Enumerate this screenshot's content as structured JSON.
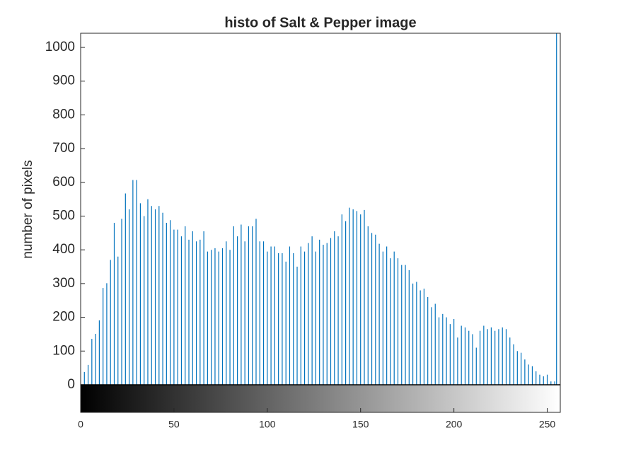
{
  "chart_data": {
    "type": "stem",
    "title": "histo of Salt & Pepper  image",
    "ylabel": "number of pixels",
    "color": "#0072bd",
    "x": [
      2,
      4,
      6,
      8,
      10,
      12,
      14,
      16,
      18,
      20,
      22,
      24,
      26,
      28,
      30,
      32,
      34,
      36,
      38,
      40,
      42,
      44,
      46,
      48,
      50,
      52,
      54,
      56,
      58,
      60,
      62,
      64,
      66,
      68,
      70,
      72,
      74,
      76,
      78,
      80,
      82,
      84,
      86,
      88,
      90,
      92,
      94,
      96,
      98,
      100,
      102,
      104,
      106,
      108,
      110,
      112,
      114,
      116,
      118,
      120,
      122,
      124,
      126,
      128,
      130,
      132,
      134,
      136,
      138,
      140,
      142,
      144,
      146,
      148,
      150,
      152,
      154,
      156,
      158,
      160,
      162,
      164,
      166,
      168,
      170,
      172,
      174,
      176,
      178,
      180,
      182,
      184,
      186,
      188,
      190,
      192,
      194,
      196,
      198,
      200,
      202,
      204,
      206,
      208,
      210,
      212,
      214,
      216,
      218,
      220,
      222,
      224,
      226,
      228,
      230,
      232,
      234,
      236,
      238,
      240,
      242,
      244,
      246,
      248,
      250,
      252,
      254,
      255
    ],
    "values": [
      38,
      59,
      136,
      151,
      191,
      287,
      301,
      370,
      480,
      380,
      492,
      567,
      520,
      607,
      607,
      538,
      500,
      550,
      530,
      520,
      530,
      510,
      480,
      488,
      460,
      460,
      440,
      470,
      430,
      455,
      425,
      430,
      455,
      395,
      400,
      405,
      395,
      405,
      425,
      400,
      470,
      440,
      475,
      425,
      470,
      470,
      492,
      425,
      425,
      395,
      410,
      410,
      390,
      390,
      365,
      410,
      390,
      350,
      410,
      395,
      420,
      440,
      395,
      430,
      415,
      420,
      435,
      455,
      440,
      505,
      485,
      525,
      520,
      515,
      505,
      518,
      470,
      450,
      445,
      418,
      395,
      410,
      375,
      395,
      375,
      355,
      355,
      340,
      300,
      305,
      280,
      285,
      260,
      230,
      240,
      200,
      210,
      200,
      180,
      195,
      140,
      175,
      170,
      160,
      150,
      110,
      160,
      175,
      165,
      170,
      160,
      165,
      170,
      165,
      140,
      120,
      100,
      95,
      75,
      60,
      55,
      40,
      30,
      25,
      30,
      10,
      10,
      1100
    ],
    "xlim": [
      0,
      257
    ],
    "ylim": [
      0,
      1042
    ],
    "xticks": [
      0,
      50,
      100,
      150,
      200,
      250
    ],
    "yticks": [
      0,
      100,
      200,
      300,
      400,
      500,
      600,
      700,
      800,
      900,
      1000
    ],
    "colorbar": "gray"
  }
}
